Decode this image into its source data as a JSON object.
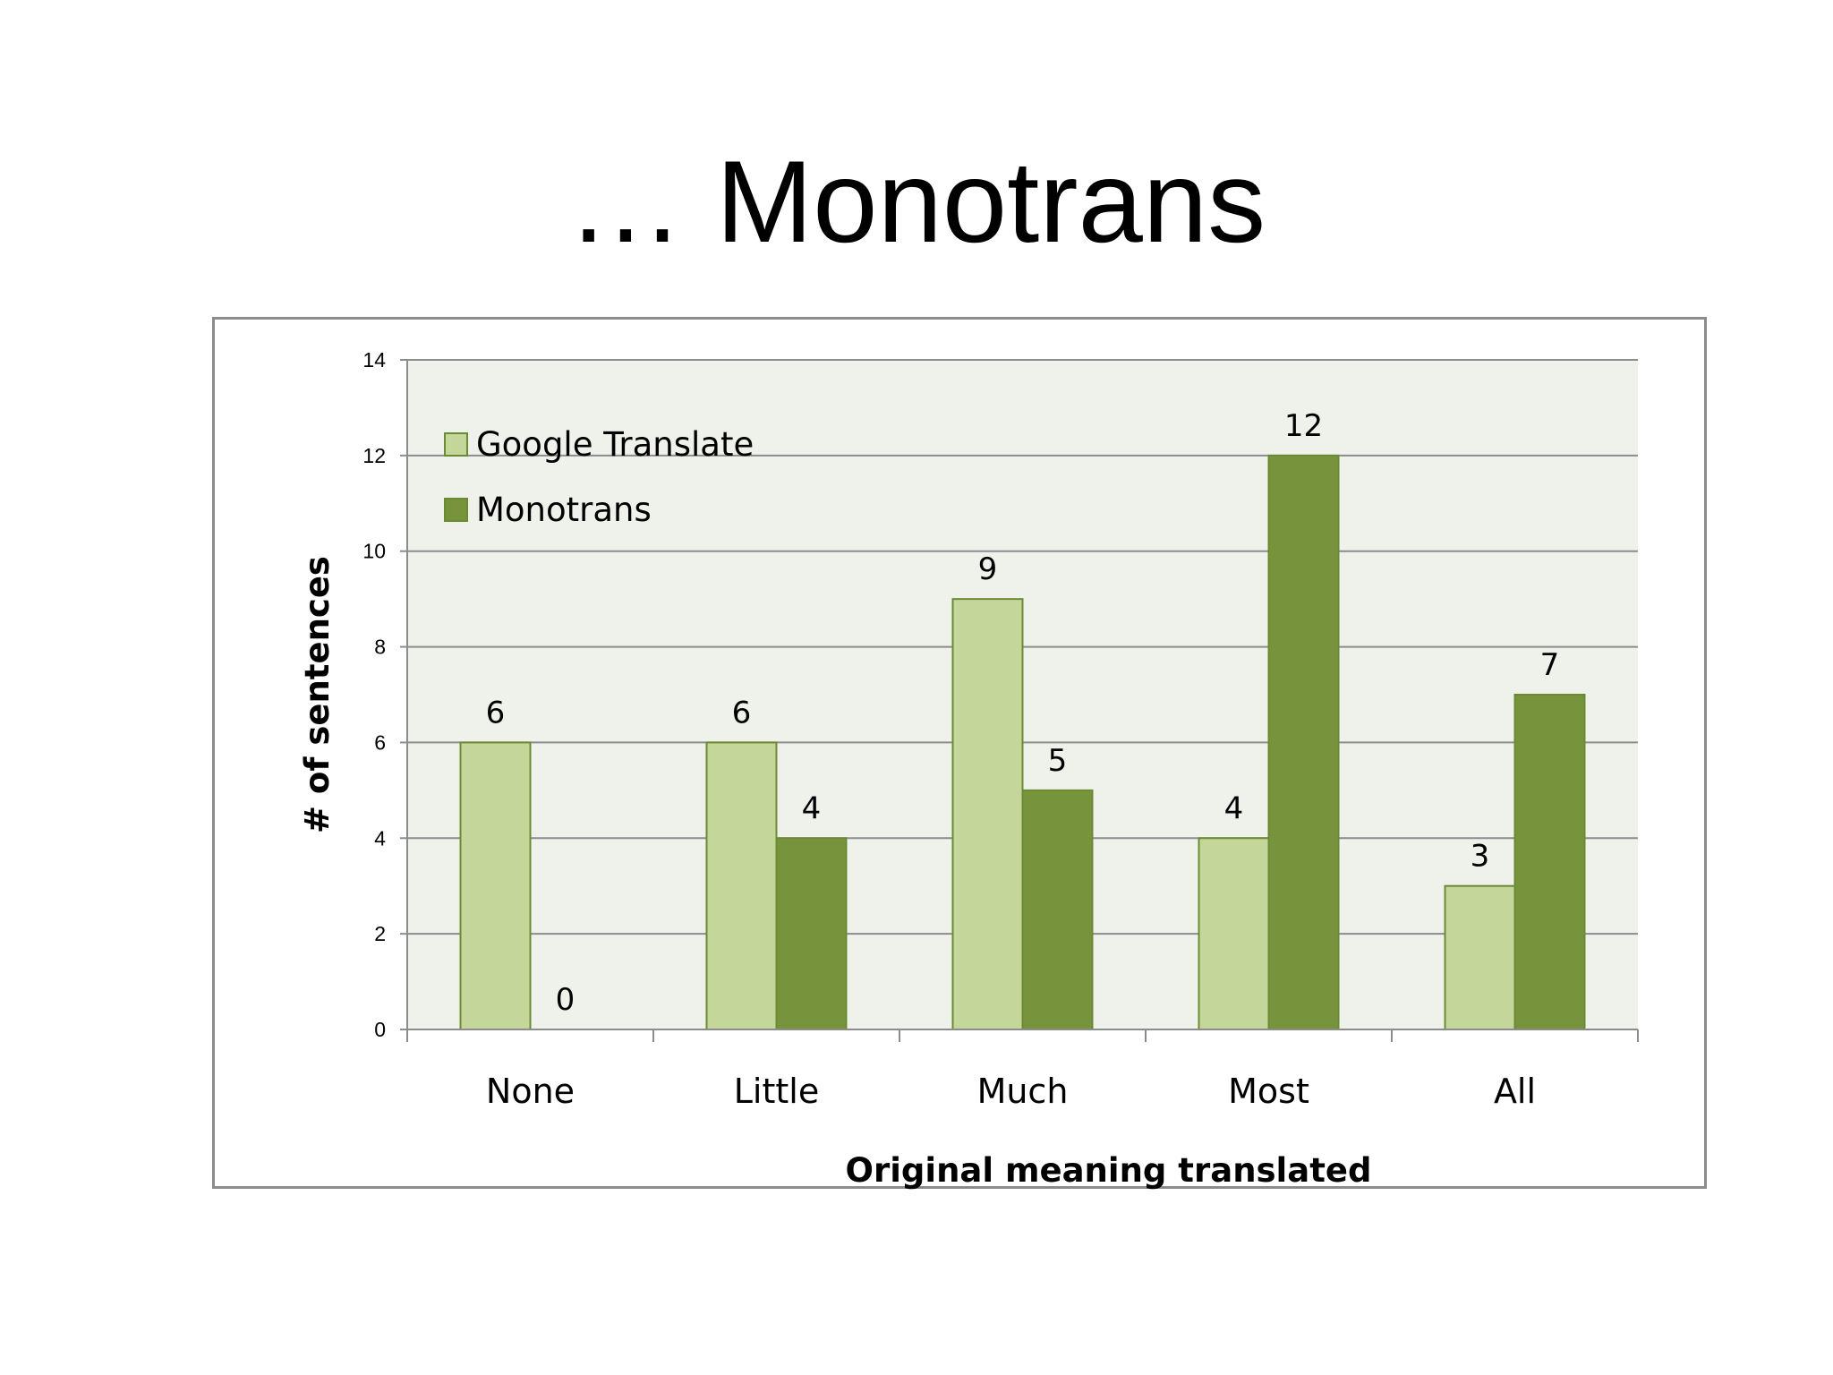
{
  "slide": {
    "title": "… Monotrans"
  },
  "chart_data": {
    "type": "bar",
    "categories": [
      "None",
      "Little",
      "Much",
      "Most",
      "All"
    ],
    "series": [
      {
        "name": "Google Translate",
        "values": [
          6,
          6,
          9,
          4,
          3
        ],
        "color": "#c5d69b"
      },
      {
        "name": "Monotrans",
        "values": [
          0,
          4,
          5,
          12,
          7
        ],
        "color": "#77933c"
      }
    ],
    "xlabel": "Original meaning translated",
    "ylabel": "# of sentences",
    "ylim": [
      0,
      14
    ],
    "yticks": [
      0,
      2,
      4,
      6,
      8,
      10,
      12,
      14
    ],
    "grid": true,
    "legend": "top-left",
    "data_labels": true,
    "plot_background": "#eff1eb",
    "gridline_color": "#8c8c8c",
    "bar_border_color": "#6b8a34"
  }
}
